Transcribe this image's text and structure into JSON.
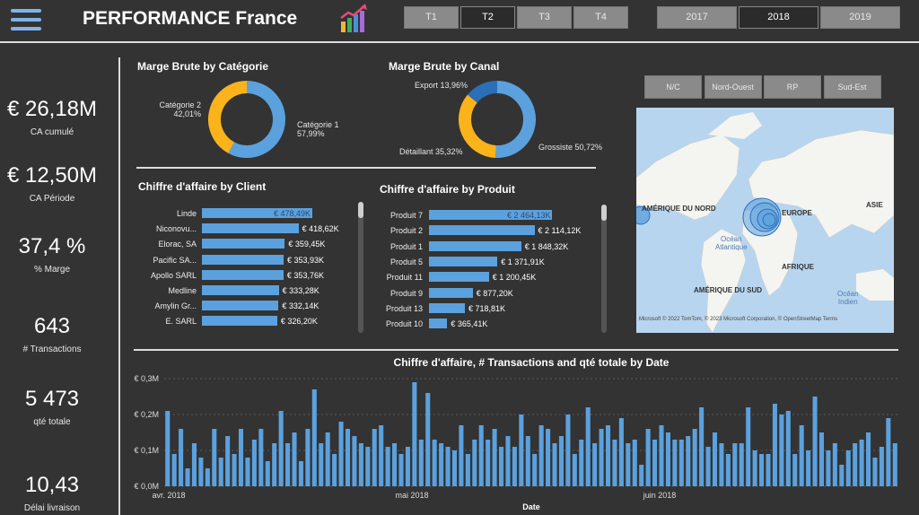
{
  "header": {
    "title": "PERFORMANCE France",
    "quarters": [
      {
        "label": "T1",
        "selected": false
      },
      {
        "label": "T2",
        "selected": true
      },
      {
        "label": "T3",
        "selected": false
      },
      {
        "label": "T4",
        "selected": false
      }
    ],
    "years": [
      {
        "label": "2017",
        "selected": false
      },
      {
        "label": "2018",
        "selected": true
      },
      {
        "label": "2019",
        "selected": false
      }
    ]
  },
  "kpis": [
    {
      "value": "€ 26,18M",
      "label": "CA cumulé"
    },
    {
      "value": "€ 12,50M",
      "label": "CA Période"
    },
    {
      "value": "37,4 %",
      "label": "% Marge"
    },
    {
      "value": "643",
      "label": "# Transactions"
    },
    {
      "value": "5 473",
      "label": "qté totale"
    },
    {
      "value": "10,43",
      "label": "Délai livraison"
    }
  ],
  "regions": [
    "N/C",
    "Nord-Ouest",
    "RP",
    "Sud-Est"
  ],
  "map": {
    "labels": {
      "na": "AMÉRIQUE DU NORD",
      "eu": "EUROPE",
      "asia": "ASIE",
      "africa": "AFRIQUE",
      "sa": "AMÉRIQUE DU SUD",
      "atl1": "Océan",
      "atl2": "Atlantique",
      "ind1": "Océan",
      "ind2": "Indien"
    },
    "attribution": "© 2022 TomTom, © 2023 Microsoft Corporation, © OpenStreetMap  Terms",
    "logo": "Microsoft"
  },
  "chart_data": [
    {
      "type": "pie",
      "title": "Marge Brute by Catégorie",
      "slices": [
        {
          "name": "Catégorie 1",
          "value": 57.99,
          "label": "Catégorie 1",
          "pct": "57,99%",
          "color": "#5ba1de"
        },
        {
          "name": "Catégorie 2",
          "value": 42.01,
          "label": "Catégorie 2",
          "pct": "42,01%",
          "color": "#fbb31c"
        }
      ]
    },
    {
      "type": "pie",
      "title": "Marge Brute by Canal",
      "slices": [
        {
          "name": "Grossiste",
          "value": 50.72,
          "label": "Grossiste 50,72%",
          "color": "#5ba1de"
        },
        {
          "name": "Détaillant",
          "value": 35.32,
          "label": "Détaillant 35,32%",
          "color": "#fbb31c"
        },
        {
          "name": "Export",
          "value": 13.96,
          "label": "Export 13,96%",
          "color": "#2a6fb7"
        }
      ]
    },
    {
      "type": "bar",
      "title": "Chiffre d'affaire by Client",
      "categories": [
        "Linde",
        "Niconovu...",
        "Elorac, SA",
        "Pacific SA...",
        "Apollo SARL",
        "Medline",
        "Amylin Gr...",
        "E. SARL"
      ],
      "values": [
        478.49,
        418.62,
        359.45,
        353.93,
        353.76,
        333.28,
        332.14,
        326.2
      ],
      "labels": [
        "€ 478,49K",
        "€ 418,62K",
        "€ 359,45K",
        "€ 353,93K",
        "€ 353,76K",
        "€ 333,28K",
        "€ 332,14K",
        "€ 326,20K"
      ]
    },
    {
      "type": "bar",
      "title": "Chiffre d'affaire by Produit",
      "categories": [
        "Produit 7",
        "Produit 2",
        "Produit 1",
        "Produit 5",
        "Produit 11",
        "Produit 9",
        "Produit 13",
        "Produit 10"
      ],
      "values": [
        2464.13,
        2114.12,
        1848.32,
        1371.91,
        1200.45,
        877.2,
        718.81,
        365.41
      ],
      "labels": [
        "€ 2 464,13K",
        "€ 2 114,12K",
        "€ 1 848,32K",
        "€ 1 371,91K",
        "€ 1 200,45K",
        "€ 877,20K",
        "€ 718,81K",
        "€ 365,41K"
      ]
    },
    {
      "type": "bar",
      "title": "Chiffre d'affaire, # Transactions and qté totale by Date",
      "xlabel": "Date",
      "ylim": [
        0,
        0.3
      ],
      "yticks": [
        "€ 0,0M",
        "€ 0,1M",
        "€ 0,2M",
        "€ 0,3M"
      ],
      "xticks": [
        "avr. 2018",
        "mai 2018",
        "juin 2018"
      ],
      "values": [
        0.21,
        0.09,
        0.16,
        0.05,
        0.12,
        0.08,
        0.05,
        0.16,
        0.08,
        0.14,
        0.09,
        0.16,
        0.08,
        0.13,
        0.16,
        0.07,
        0.12,
        0.21,
        0.12,
        0.15,
        0.07,
        0.16,
        0.27,
        0.12,
        0.15,
        0.09,
        0.18,
        0.16,
        0.14,
        0.12,
        0.11,
        0.16,
        0.17,
        0.11,
        0.12,
        0.09,
        0.11,
        0.29,
        0.13,
        0.26,
        0.13,
        0.12,
        0.11,
        0.1,
        0.17,
        0.09,
        0.13,
        0.17,
        0.13,
        0.16,
        0.11,
        0.14,
        0.11,
        0.2,
        0.14,
        0.09,
        0.17,
        0.16,
        0.12,
        0.14,
        0.2,
        0.09,
        0.13,
        0.22,
        0.12,
        0.16,
        0.17,
        0.13,
        0.19,
        0.12,
        0.13,
        0.06,
        0.16,
        0.13,
        0.17,
        0.15,
        0.13,
        0.13,
        0.14,
        0.16,
        0.22,
        0.11,
        0.15,
        0.12,
        0.09,
        0.12,
        0.12,
        0.22,
        0.1,
        0.09,
        0.09,
        0.23,
        0.2,
        0.21,
        0.09,
        0.17,
        0.1,
        0.25,
        0.15,
        0.1,
        0.12,
        0.06,
        0.1,
        0.12,
        0.13,
        0.15,
        0.08,
        0.11,
        0.19,
        0.12
      ]
    }
  ]
}
